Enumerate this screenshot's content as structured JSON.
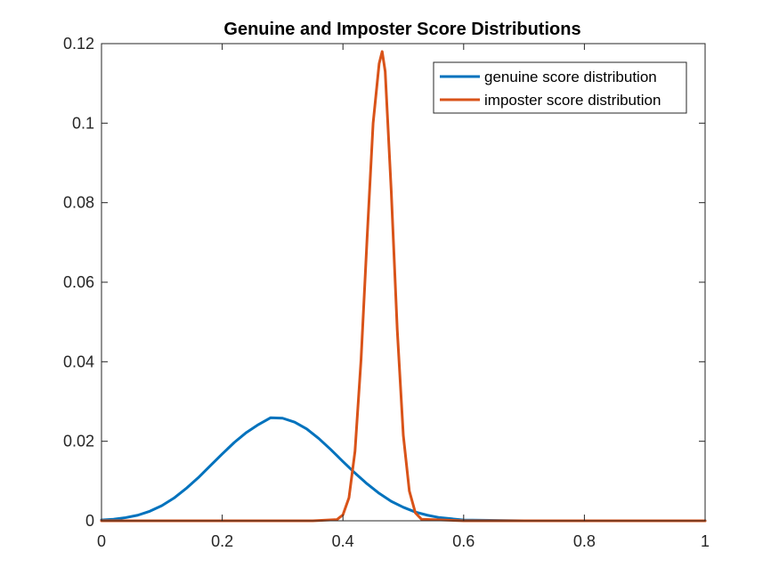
{
  "chart_data": {
    "type": "line",
    "title": "Genuine and Imposter Score Distributions",
    "xlabel": "",
    "ylabel": "",
    "xlim": [
      0,
      1
    ],
    "ylim": [
      0,
      0.12
    ],
    "x_ticks": [
      0,
      0.2,
      0.4,
      0.6,
      0.8,
      1
    ],
    "x_tick_labels": [
      "0",
      "0.2",
      "0.4",
      "0.6",
      "0.8",
      "1"
    ],
    "y_ticks": [
      0,
      0.02,
      0.04,
      0.06,
      0.08,
      0.1,
      0.12
    ],
    "y_tick_labels": [
      "0",
      "0.02",
      "0.04",
      "0.06",
      "0.08",
      "0.1",
      "0.12"
    ],
    "grid": false,
    "legend_position": "top-right",
    "series": [
      {
        "name": "genuine score distribution",
        "color": "#0072BD",
        "x": [
          0,
          0.02,
          0.04,
          0.06,
          0.08,
          0.1,
          0.12,
          0.14,
          0.16,
          0.18,
          0.2,
          0.22,
          0.24,
          0.26,
          0.28,
          0.3,
          0.32,
          0.34,
          0.36,
          0.38,
          0.4,
          0.42,
          0.44,
          0.46,
          0.48,
          0.5,
          0.52,
          0.54,
          0.56,
          0.6,
          0.7,
          0.8,
          0.9,
          1.0
        ],
        "y": [
          0.0002,
          0.0004,
          0.0008,
          0.0014,
          0.0024,
          0.0038,
          0.0057,
          0.0081,
          0.0108,
          0.0138,
          0.0168,
          0.0197,
          0.0222,
          0.0242,
          0.0259,
          0.0258,
          0.0248,
          0.0231,
          0.0207,
          0.0179,
          0.0149,
          0.012,
          0.0093,
          0.0069,
          0.0049,
          0.0034,
          0.0022,
          0.0014,
          0.0008,
          0.0002,
          0.0,
          0.0,
          0.0,
          0.0
        ]
      },
      {
        "name": "imposter score distribution",
        "color": "#D95319",
        "x": [
          0,
          0.35,
          0.39,
          0.4,
          0.41,
          0.42,
          0.43,
          0.44,
          0.45,
          0.46,
          0.465,
          0.47,
          0.48,
          0.49,
          0.5,
          0.51,
          0.52,
          0.53,
          0.6,
          0.8,
          1.0
        ],
        "y": [
          0.0,
          0.0,
          0.0003,
          0.0015,
          0.0058,
          0.0175,
          0.0405,
          0.071,
          0.1,
          0.115,
          0.118,
          0.113,
          0.083,
          0.048,
          0.0215,
          0.0075,
          0.002,
          0.0004,
          0.0,
          0.0,
          0.0
        ]
      }
    ]
  }
}
